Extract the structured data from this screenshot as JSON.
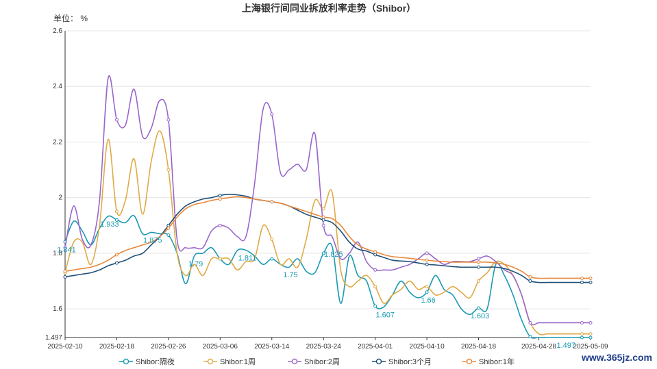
{
  "watermark": "www.365jz.com",
  "chart_data": {
    "type": "line",
    "title": "上海银行间同业拆放利率走势（Shibor）",
    "unit_label": "单位：  %",
    "ylim": [
      1.497,
      2.6
    ],
    "yticks": [
      "1.497",
      "1.6",
      "1.8",
      "2",
      "2.2",
      "2.4",
      "2.6"
    ],
    "grid": true,
    "legend_position": "bottom-center",
    "x": [
      "2025-02-10",
      "2025-02-11",
      "2025-02-12",
      "2025-02-13",
      "2025-02-14",
      "2025-02-17",
      "2025-02-18",
      "2025-02-19",
      "2025-02-20",
      "2025-02-21",
      "2025-02-24",
      "2025-02-25",
      "2025-02-26",
      "2025-02-27",
      "2025-02-28",
      "2025-03-03",
      "2025-03-04",
      "2025-03-05",
      "2025-03-06",
      "2025-03-07",
      "2025-03-10",
      "2025-03-11",
      "2025-03-12",
      "2025-03-13",
      "2025-03-14",
      "2025-03-17",
      "2025-03-18",
      "2025-03-19",
      "2025-03-20",
      "2025-03-21",
      "2025-03-24",
      "2025-03-25",
      "2025-03-26",
      "2025-03-27",
      "2025-03-28",
      "2025-03-31",
      "2025-04-01",
      "2025-04-02",
      "2025-04-03",
      "2025-04-07",
      "2025-04-08",
      "2025-04-09",
      "2025-04-10",
      "2025-04-11",
      "2025-04-14",
      "2025-04-15",
      "2025-04-16",
      "2025-04-17",
      "2025-04-18",
      "2025-04-21",
      "2025-04-22",
      "2025-04-23",
      "2025-04-24",
      "2025-04-25",
      "2025-04-27",
      "2025-04-28",
      "2025-04-29",
      "2025-04-30",
      "2025-05-06",
      "2025-05-07",
      "2025-05-08",
      "2025-05-09"
    ],
    "xtick_labels": [
      "2025-02-10",
      "2025-02-18",
      "2025-02-26",
      "2025-03-06",
      "2025-03-14",
      "2025-03-24",
      "2025-04-01",
      "2025-04-10",
      "2025-04-18",
      "2025-04-28",
      "2025-05-09"
    ],
    "series": [
      {
        "name": "Shibor:隔夜",
        "color": "#1a9ab4",
        "values": [
          1.841,
          1.915,
          1.88,
          1.83,
          1.89,
          1.933,
          1.92,
          1.91,
          1.935,
          1.87,
          1.875,
          1.87,
          1.865,
          1.8,
          1.69,
          1.79,
          1.8,
          1.82,
          1.78,
          1.76,
          1.81,
          1.811,
          1.79,
          1.76,
          1.78,
          1.76,
          1.75,
          1.78,
          1.735,
          1.73,
          1.8,
          1.825,
          1.62,
          1.79,
          1.72,
          1.7,
          1.61,
          1.607,
          1.65,
          1.7,
          1.66,
          1.64,
          1.66,
          1.72,
          1.67,
          1.65,
          1.6,
          1.58,
          1.603,
          1.6,
          1.76,
          1.72,
          1.65,
          1.56,
          1.5,
          1.497,
          1.497,
          1.497,
          1.497,
          1.497,
          1.497,
          1.497
        ],
        "labels": [
          [
            0,
            "1.841"
          ],
          [
            5,
            "1.933"
          ],
          [
            10,
            "1.875"
          ],
          [
            15,
            "1.79"
          ],
          [
            21,
            "1.811"
          ],
          [
            26,
            "1.75"
          ],
          [
            31,
            "1.825"
          ],
          [
            37,
            "1.607"
          ],
          [
            42,
            "1.66"
          ],
          [
            48,
            "1.603"
          ],
          [
            58,
            "1.497"
          ]
        ]
      },
      {
        "name": "Shibor:1周",
        "color": "#e0aa45",
        "values": [
          1.73,
          1.84,
          1.84,
          1.76,
          1.9,
          2.21,
          1.95,
          1.99,
          2.14,
          1.94,
          2.13,
          2.24,
          2.1,
          1.8,
          1.72,
          1.76,
          1.72,
          1.78,
          1.78,
          1.78,
          1.74,
          1.77,
          1.78,
          1.9,
          1.85,
          1.76,
          1.78,
          1.75,
          1.85,
          1.99,
          1.96,
          2.02,
          1.74,
          1.68,
          1.7,
          1.72,
          1.68,
          1.62,
          1.65,
          1.67,
          1.7,
          1.67,
          1.68,
          1.65,
          1.66,
          1.68,
          1.66,
          1.64,
          1.7,
          1.73,
          1.77,
          1.76,
          1.72,
          1.65,
          1.55,
          1.51,
          1.51,
          1.51,
          1.51,
          1.51,
          1.51,
          1.51
        ]
      },
      {
        "name": "Shibor:2周",
        "color": "#9966cc",
        "values": [
          1.82,
          1.97,
          1.85,
          1.83,
          1.99,
          2.43,
          2.28,
          2.26,
          2.39,
          2.22,
          2.25,
          2.35,
          2.28,
          1.85,
          1.82,
          1.82,
          1.82,
          1.88,
          1.9,
          1.89,
          1.86,
          1.86,
          2.05,
          2.32,
          2.3,
          2.09,
          2.1,
          2.12,
          2.1,
          2.23,
          1.9,
          1.86,
          1.78,
          1.8,
          1.84,
          1.77,
          1.74,
          1.74,
          1.74,
          1.75,
          1.76,
          1.78,
          1.8,
          1.78,
          1.76,
          1.77,
          1.77,
          1.77,
          1.78,
          1.79,
          1.77,
          1.74,
          1.72,
          1.65,
          1.55,
          1.55,
          1.55,
          1.55,
          1.55,
          1.55,
          1.55,
          1.55
        ]
      },
      {
        "name": "Shibor:3个月",
        "color": "#1e4f78",
        "values": [
          1.715,
          1.72,
          1.725,
          1.73,
          1.74,
          1.755,
          1.765,
          1.775,
          1.79,
          1.8,
          1.83,
          1.86,
          1.9,
          1.94,
          1.97,
          1.985,
          1.995,
          2.0,
          2.008,
          2.012,
          2.01,
          2.005,
          1.995,
          1.99,
          1.985,
          1.98,
          1.97,
          1.955,
          1.94,
          1.93,
          1.92,
          1.91,
          1.88,
          1.84,
          1.815,
          1.808,
          1.795,
          1.785,
          1.775,
          1.772,
          1.77,
          1.765,
          1.76,
          1.758,
          1.755,
          1.752,
          1.75,
          1.75,
          1.75,
          1.75,
          1.75,
          1.745,
          1.735,
          1.72,
          1.7,
          1.695,
          1.695,
          1.695,
          1.695,
          1.695,
          1.695,
          1.695
        ]
      },
      {
        "name": "Shibor:1年",
        "color": "#e8883c",
        "values": [
          1.735,
          1.74,
          1.745,
          1.75,
          1.76,
          1.775,
          1.795,
          1.81,
          1.82,
          1.83,
          1.84,
          1.86,
          1.89,
          1.93,
          1.96,
          1.975,
          1.982,
          1.99,
          1.995,
          2.0,
          2.003,
          2.0,
          1.995,
          1.99,
          1.985,
          1.98,
          1.97,
          1.96,
          1.95,
          1.94,
          1.93,
          1.925,
          1.9,
          1.86,
          1.83,
          1.815,
          1.805,
          1.795,
          1.788,
          1.785,
          1.782,
          1.778,
          1.775,
          1.772,
          1.77,
          1.768,
          1.768,
          1.768,
          1.768,
          1.768,
          1.765,
          1.76,
          1.75,
          1.735,
          1.715,
          1.71,
          1.71,
          1.71,
          1.71,
          1.71,
          1.71,
          1.71
        ]
      }
    ]
  }
}
